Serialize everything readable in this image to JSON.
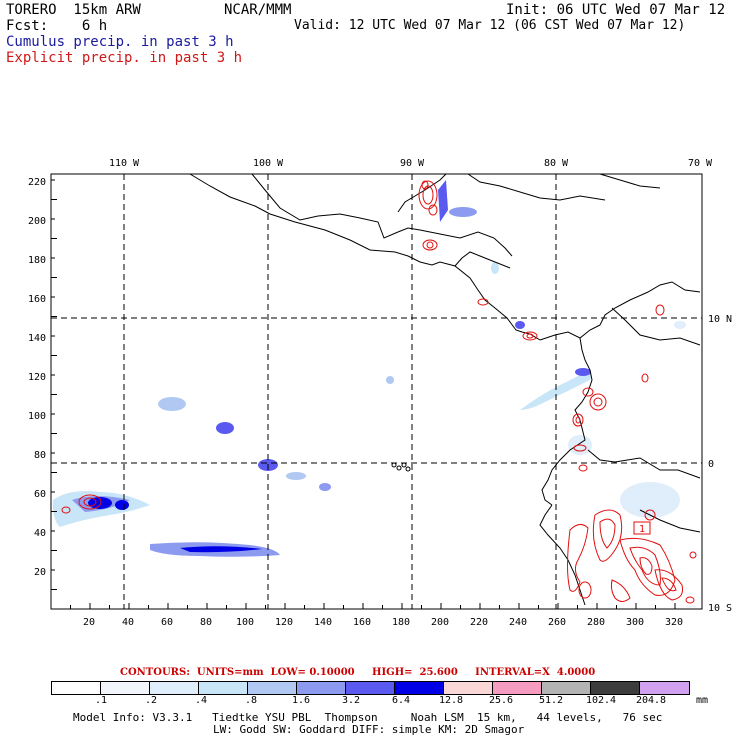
{
  "header": {
    "model": "TORERO  15km ARW",
    "org": "NCAR/MMM",
    "init": "Init: 06 UTC Wed 07 Mar 12",
    "fcst": "Fcst:    6 h",
    "valid": "Valid: 12 UTC Wed 07 Mar 12 (06 CST Wed 07 Mar 12)",
    "field1": "Cumulus precip. in past 3 h",
    "field2": "Explicit precip. in past 3 h",
    "field1_color": "#1a1aa0",
    "field2_color": "#d01818"
  },
  "map": {
    "top_lon_labels": [
      "110 W",
      "100 W",
      "90 W",
      "80 W",
      "70 W"
    ],
    "right_lat_labels": [
      "10 N",
      "0",
      "10 S"
    ],
    "y_ticks": [
      "220",
      "200",
      "180",
      "160",
      "140",
      "120",
      "100",
      "80",
      "60",
      "40",
      "20"
    ],
    "x_ticks": [
      "20",
      "40",
      "60",
      "80",
      "100",
      "120",
      "140",
      "160",
      "180",
      "200",
      "220",
      "240",
      "260",
      "280",
      "300",
      "320"
    ],
    "label_1": "1"
  },
  "contours": "CONTOURS:  UNITS=mm  LOW= 0.10000     HIGH=  25.600     INTERVAL=X  4.0000",
  "legend": {
    "labels": [
      ".1",
      ".2",
      ".4",
      ".8",
      "1.6",
      "3.2",
      "6.4",
      "12.8",
      "25.6",
      "51.2",
      "102.4",
      "204.8"
    ],
    "unit": "mm",
    "colors": [
      "#ffffff",
      "#f2f6fc",
      "#dfeefa",
      "#c8e6f8",
      "#b0c8f2",
      "#8c9af0",
      "#5a5af0",
      "#0000e6",
      "#fbd6d6",
      "#f59cc0",
      "#b4b4b4",
      "#3c3c3c",
      "#d2a0f0"
    ]
  },
  "info": {
    "line1": "Model Info: V3.3.1   Tiedtke YSU PBL  Thompson     Noah LSM  15 km,   44 levels,   76 sec",
    "line2": "LW: Godd SW: Goddard DIFF: simple KM: 2D Smagor"
  }
}
